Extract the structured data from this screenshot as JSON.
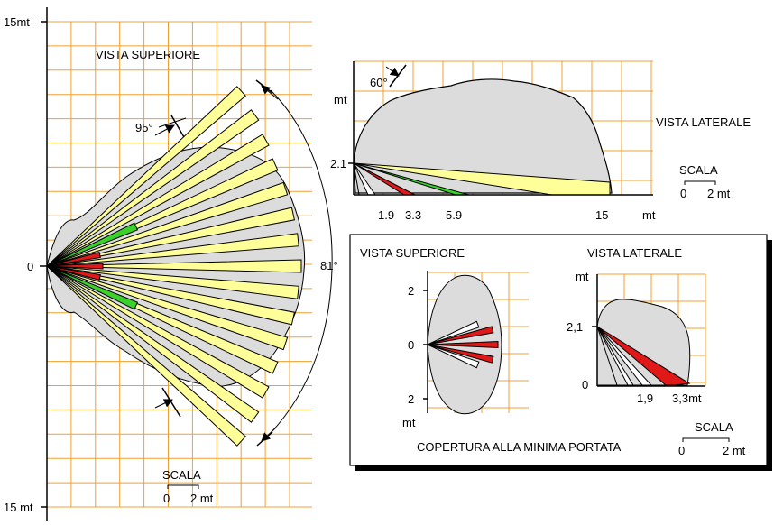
{
  "colors": {
    "grid": "#f0a030",
    "coverage_grey": "#dcdcdc",
    "beam_yellow": "#ffff99",
    "beam_green": "#39d12a",
    "beam_red": "#e01818",
    "beam_white": "#ffffff"
  },
  "main_view": {
    "title": "VISTA SUPERIORE",
    "y_top_label": "15mt",
    "y_zero_label": "0",
    "y_bottom_label": "15 mt",
    "angle_top": "95°",
    "angle_side": "81°",
    "scale": {
      "title": "SCALA",
      "from": "0",
      "to": "2 mt"
    }
  },
  "side_view": {
    "title": "VISTA LATERALE",
    "angle": "60°",
    "y_unit": "mt",
    "height_label": "2.1",
    "x_ticks": [
      "1.9",
      "3.3",
      "5.9",
      "15"
    ],
    "x_unit": "mt",
    "scale": {
      "title": "SCALA",
      "from": "0",
      "to": "2 mt"
    }
  },
  "inset": {
    "top_title": "VISTA SUPERIORE",
    "side_title": "VISTA LATERALE",
    "top_y_ticks": [
      "2",
      "0",
      "2"
    ],
    "top_y_unit": "mt",
    "side_y_unit": "mt",
    "side_height_label": "2,1",
    "side_zero_label": "0",
    "side_x_ticks": [
      "1,9",
      "3,3mt"
    ],
    "caption": "COPERTURA ALLA MINIMA PORTATA",
    "scale": {
      "title": "SCALA",
      "from": "0",
      "to": "2 mt"
    }
  }
}
